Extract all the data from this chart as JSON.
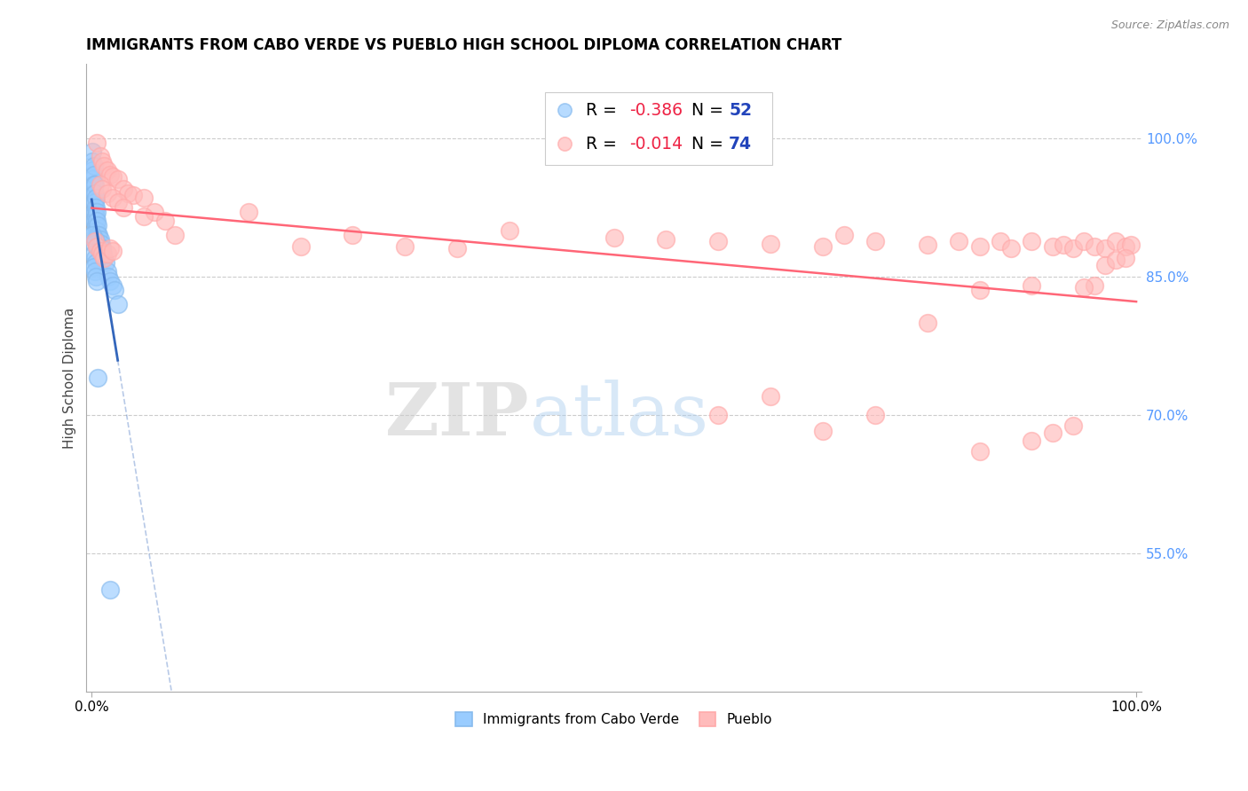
{
  "title": "IMMIGRANTS FROM CABO VERDE VS PUEBLO HIGH SCHOOL DIPLOMA CORRELATION CHART",
  "source": "Source: ZipAtlas.com",
  "ylabel": "High School Diploma",
  "legend_blue_label": "Immigrants from Cabo Verde",
  "legend_pink_label": "Pueblo",
  "blue_color": "#88BBEE",
  "pink_color": "#FFAAAA",
  "blue_line_color": "#3366BB",
  "pink_line_color": "#FF6677",
  "blue_marker_color": "#99CCFF",
  "pink_marker_color": "#FFBBBB",
  "watermark_zip_color": "#CCCCCC",
  "watermark_atlas_color": "#AACCFF",
  "ytick_color": "#5599FF",
  "ytick_values": [
    0.55,
    0.7,
    0.85,
    1.0
  ],
  "ytick_labels": [
    "55.0%",
    "70.0%",
    "85.0%",
    "100.0%"
  ],
  "ymin": 0.4,
  "ymax": 1.08,
  "xmin": -0.005,
  "xmax": 1.005,
  "blue_x": [
    0.001,
    0.001,
    0.001,
    0.001,
    0.001,
    0.002,
    0.002,
    0.002,
    0.002,
    0.002,
    0.002,
    0.002,
    0.003,
    0.003,
    0.003,
    0.003,
    0.003,
    0.003,
    0.004,
    0.004,
    0.004,
    0.004,
    0.005,
    0.005,
    0.005,
    0.006,
    0.006,
    0.007,
    0.008,
    0.009,
    0.01,
    0.011,
    0.012,
    0.013,
    0.015,
    0.016,
    0.018,
    0.02,
    0.022,
    0.025,
    0.003,
    0.002,
    0.001,
    0.002,
    0.003,
    0.004,
    0.002,
    0.003,
    0.004,
    0.005,
    0.018,
    0.006
  ],
  "blue_y": [
    0.985,
    0.975,
    0.965,
    0.955,
    0.945,
    0.97,
    0.96,
    0.95,
    0.94,
    0.93,
    0.92,
    0.91,
    0.95,
    0.94,
    0.93,
    0.92,
    0.91,
    0.9,
    0.935,
    0.925,
    0.915,
    0.905,
    0.92,
    0.91,
    0.9,
    0.905,
    0.895,
    0.895,
    0.89,
    0.885,
    0.88,
    0.875,
    0.87,
    0.865,
    0.855,
    0.85,
    0.845,
    0.84,
    0.835,
    0.82,
    0.89,
    0.885,
    0.895,
    0.875,
    0.87,
    0.865,
    0.86,
    0.855,
    0.85,
    0.845,
    0.51,
    0.74
  ],
  "pink_x": [
    0.005,
    0.008,
    0.01,
    0.012,
    0.015,
    0.018,
    0.02,
    0.025,
    0.03,
    0.035,
    0.04,
    0.05,
    0.06,
    0.07,
    0.08,
    0.008,
    0.01,
    0.015,
    0.02,
    0.025,
    0.03,
    0.05,
    0.003,
    0.005,
    0.008,
    0.01,
    0.012,
    0.015,
    0.018,
    0.02,
    0.15,
    0.2,
    0.25,
    0.3,
    0.35,
    0.4,
    0.5,
    0.55,
    0.6,
    0.65,
    0.7,
    0.72,
    0.75,
    0.8,
    0.83,
    0.85,
    0.87,
    0.88,
    0.9,
    0.92,
    0.93,
    0.94,
    0.95,
    0.96,
    0.97,
    0.98,
    0.99,
    0.995,
    0.6,
    0.65,
    0.7,
    0.75,
    0.8,
    0.85,
    0.9,
    0.92,
    0.94,
    0.96,
    0.97,
    0.98,
    0.99,
    0.85,
    0.9,
    0.95
  ],
  "pink_y": [
    0.995,
    0.98,
    0.975,
    0.97,
    0.965,
    0.96,
    0.958,
    0.955,
    0.945,
    0.94,
    0.938,
    0.935,
    0.92,
    0.91,
    0.895,
    0.95,
    0.945,
    0.94,
    0.935,
    0.93,
    0.925,
    0.915,
    0.888,
    0.882,
    0.878,
    0.875,
    0.87,
    0.875,
    0.88,
    0.878,
    0.92,
    0.882,
    0.895,
    0.882,
    0.88,
    0.9,
    0.892,
    0.89,
    0.888,
    0.885,
    0.882,
    0.895,
    0.888,
    0.884,
    0.888,
    0.882,
    0.888,
    0.88,
    0.888,
    0.882,
    0.884,
    0.88,
    0.888,
    0.882,
    0.88,
    0.888,
    0.882,
    0.884,
    0.7,
    0.72,
    0.682,
    0.7,
    0.8,
    0.66,
    0.672,
    0.68,
    0.688,
    0.84,
    0.862,
    0.868,
    0.87,
    0.835,
    0.84,
    0.838
  ]
}
